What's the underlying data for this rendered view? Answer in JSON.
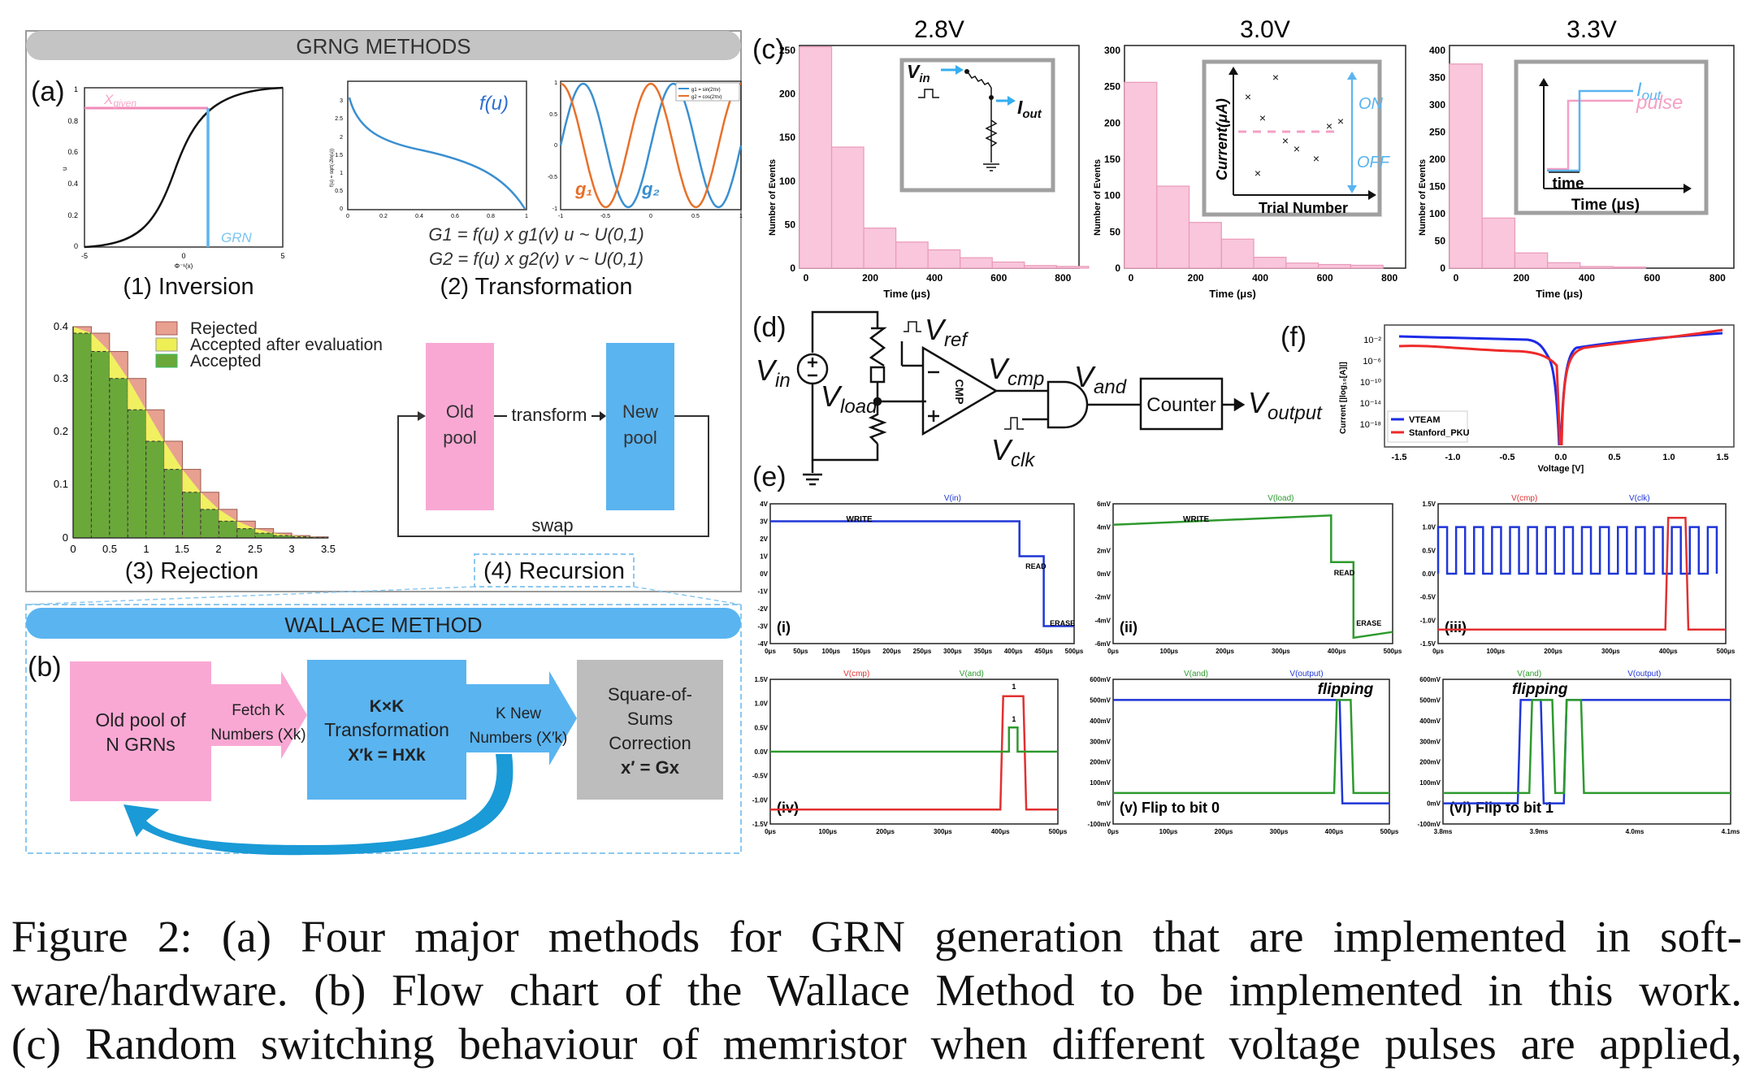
{
  "panel_a": {
    "header": "GRNG METHODS",
    "label": "(a)",
    "inversion": {
      "caption": "(1) Inversion",
      "xgiven": "X",
      "xgiven_sub": "given",
      "grn": "GRN",
      "y_ticks": [
        "1",
        "0.8",
        "0.6",
        "0.4",
        "0.2",
        "0"
      ],
      "x_ticks": [
        "-5",
        "0",
        "5"
      ],
      "y_label": "u",
      "x_label": "Φ⁻¹(x)"
    },
    "transformation": {
      "caption": "(2) Transformation",
      "fu": "f(u)",
      "g1": "g₁",
      "g2": "g₂",
      "legend_g1": "g1 = sin(2πv)",
      "legend_g2": "g2 = cos(2πv)",
      "eq1": "G1 = f(u) x g1(v) u ~ U(0,1)",
      "eq2": "G2 = f(u) x g2(v) v ~ U(0,1)",
      "f_ylabel": "f(u) = sqrt(-2ln(u))",
      "f_yticks": [
        "3",
        "2.5",
        "2",
        "1.5",
        "1",
        "0.5",
        "0"
      ],
      "f_xticks": [
        "0",
        "0.2",
        "0.4",
        "0.6",
        "0.8",
        "1"
      ],
      "g_yticks": [
        "1",
        "0.5",
        "0",
        "-0.5",
        "-1"
      ],
      "g_xticks": [
        "-1",
        "-0.5",
        "0",
        "0.5",
        "1"
      ]
    },
    "rejection": {
      "caption": "(3) Rejection",
      "legend": [
        "Rejected",
        "Accepted after evaluation",
        "Accepted"
      ],
      "y_ticks": [
        "0.4",
        "0.3",
        "0.2",
        "0.1",
        "0"
      ],
      "x_ticks": [
        "0",
        "0.5",
        "1",
        "1.5",
        "2",
        "2.5",
        "3",
        "3.5"
      ]
    },
    "recursion": {
      "caption": "(4) Recursion",
      "old_pool": [
        "Old",
        "pool"
      ],
      "new_pool": [
        "New",
        "pool"
      ],
      "transform": "transform",
      "swap": "swap"
    }
  },
  "panel_b": {
    "header": "WALLACE METHOD",
    "label": "(b)",
    "old_pool": [
      "Old pool of",
      "N  GRNs"
    ],
    "fetch": [
      "Fetch K",
      "Numbers (Xk)"
    ],
    "kxk": [
      "K×K",
      "Transformation",
      "X′k = HXk"
    ],
    "knew": [
      "K New",
      "Numbers (X′k)"
    ],
    "sos": [
      "Square-of-",
      "Sums",
      "Correction",
      "x′ = Gx"
    ]
  },
  "panel_c": {
    "label": "(c)",
    "ylabel": "Number of Events",
    "xlabel": "Time (μs)",
    "charts": [
      {
        "title": "2.8V",
        "ymax": 250,
        "yticks": [
          "0",
          "50",
          "100",
          "150",
          "200",
          "250"
        ],
        "values": [
          254,
          139,
          46,
          30,
          21,
          12,
          7,
          3,
          2
        ]
      },
      {
        "title": "3.0V",
        "ymax": 300,
        "yticks": [
          "0",
          "50",
          "100",
          "150",
          "200",
          "250",
          "300"
        ],
        "values": [
          256,
          113,
          63,
          40,
          15,
          7,
          5,
          4
        ]
      },
      {
        "title": "3.3V",
        "ymax": 400,
        "yticks": [
          "0",
          "50",
          "100",
          "150",
          "200",
          "250",
          "300",
          "350",
          "400"
        ],
        "values": [
          375,
          92,
          28,
          10,
          3,
          2
        ]
      }
    ],
    "xticks": [
      "0",
      "200",
      "400",
      "600",
      "800"
    ],
    "inset1": {
      "vin": "V",
      "vin_sub": "in",
      "iout": "I",
      "iout_sub": "out"
    },
    "inset2": {
      "y": "Current(μA)",
      "x": "Trial Number",
      "on": "ON",
      "off": "OFF"
    },
    "inset3": {
      "iout": "I",
      "iout_sub": "out",
      "pulse": "pulse",
      "time": "time",
      "xlabel": "Time (μs)"
    }
  },
  "panel_d": {
    "label": "(d)",
    "vin": "in",
    "vref": "ref",
    "vload": "load",
    "vcmp": "cmp",
    "vand": "and",
    "vclk": "clk",
    "voutput": "output",
    "v": "V",
    "cmp": "CMP",
    "counter": "Counter"
  },
  "panel_f": {
    "label": "(f)",
    "ylabel": "Current [|log₁₀[A]|]",
    "xlabel": "Voltage [V]",
    "yticks": [
      "10⁻²",
      "10⁻⁶",
      "10⁻¹⁰",
      "10⁻¹⁴",
      "10⁻¹⁸"
    ],
    "xticks": [
      "-1.5",
      "-1.0",
      "-0.5",
      "0.0",
      "0.5",
      "1.0",
      "1.5"
    ],
    "legend": [
      "VTEAM",
      "Stanford_PKU"
    ],
    "colors": [
      "#1d2be6",
      "#ee2a2a"
    ]
  },
  "panel_e": {
    "label": "(e)",
    "plots": [
      {
        "id": "(i)",
        "titles": [
          "V(in)"
        ],
        "yticks": [
          "4V",
          "3V",
          "2V",
          "1V",
          "0V",
          "-1V",
          "-2V",
          "-3V",
          "-4V"
        ],
        "xticks": [
          "0μs",
          "50μs",
          "100μs",
          "150μs",
          "200μs",
          "250μs",
          "300μs",
          "350μs",
          "400μs",
          "450μs",
          "500μs"
        ],
        "notes": [
          "WRITE",
          "READ",
          "ERASE"
        ]
      },
      {
        "id": "(ii)",
        "titles": [
          "V(load)"
        ],
        "yticks": [
          "6mV",
          "4mV",
          "2mV",
          "0mV",
          "-2mV",
          "-4mV",
          "-6mV"
        ],
        "xticks": [
          "0μs",
          "100μs",
          "200μs",
          "300μs",
          "400μs",
          "500μs"
        ],
        "notes": [
          "WRITE",
          "READ",
          "ERASE"
        ]
      },
      {
        "id": "(iii)",
        "titles": [
          "V(cmp)",
          "V(clk)"
        ],
        "yticks": [
          "1.5V",
          "1.0V",
          "0.5V",
          "0.0V",
          "-0.5V",
          "-1.0V",
          "-1.5V"
        ],
        "xticks": [
          "0μs",
          "100μs",
          "200μs",
          "300μs",
          "400μs",
          "500μs"
        ],
        "notes": []
      },
      {
        "id": "(iv)",
        "titles": [
          "V(cmp)",
          "V(and)"
        ],
        "yticks": [
          "1.5V",
          "1.0V",
          "0.5V",
          "0.0V",
          "-0.5V",
          "-1.0V",
          "-1.5V"
        ],
        "xticks": [
          "0μs",
          "100μs",
          "200μs",
          "300μs",
          "400μs",
          "500μs"
        ],
        "notes": [
          "1",
          "1"
        ]
      },
      {
        "id": "(v) Flip to bit 0",
        "titles": [
          "V(and)",
          "V(output)"
        ],
        "yticks": [
          "600mV",
          "500mV",
          "400mV",
          "300mV",
          "200mV",
          "100mV",
          "0mV",
          "-100mV"
        ],
        "xticks": [
          "0μs",
          "100μs",
          "200μs",
          "300μs",
          "400μs",
          "500μs"
        ],
        "notes": [
          "flipping"
        ]
      },
      {
        "id": "(vi) Flip to bit 1",
        "titles": [
          "V(and)",
          "V(output)"
        ],
        "yticks": [
          "600mV",
          "500mV",
          "400mV",
          "300mV",
          "200mV",
          "100mV",
          "0mV",
          "-100mV"
        ],
        "xticks": [
          "3.8ms",
          "3.9ms",
          "4.0ms",
          "4.1ms"
        ],
        "notes": [
          "flipping"
        ]
      }
    ]
  },
  "caption": {
    "lines": [
      "Figure 2:  (a) Four major methods for GRN generation that are implemented in soft-",
      "ware/hardware.  (b) Flow chart of the Wallace Method to be implemented in this work.",
      "(c) Random switching behaviour of memristor when different voltage pulses are applied,"
    ]
  },
  "colors": {
    "pink": "#f9a8d4",
    "blue": "#5ab4f0",
    "gray": "#bdbdbd",
    "curve_blue": "#3a8fd0",
    "curve_orange": "#e8702a",
    "red": "#e23030",
    "green": "#2e9a2e",
    "dark_blue": "#1f36d6"
  }
}
